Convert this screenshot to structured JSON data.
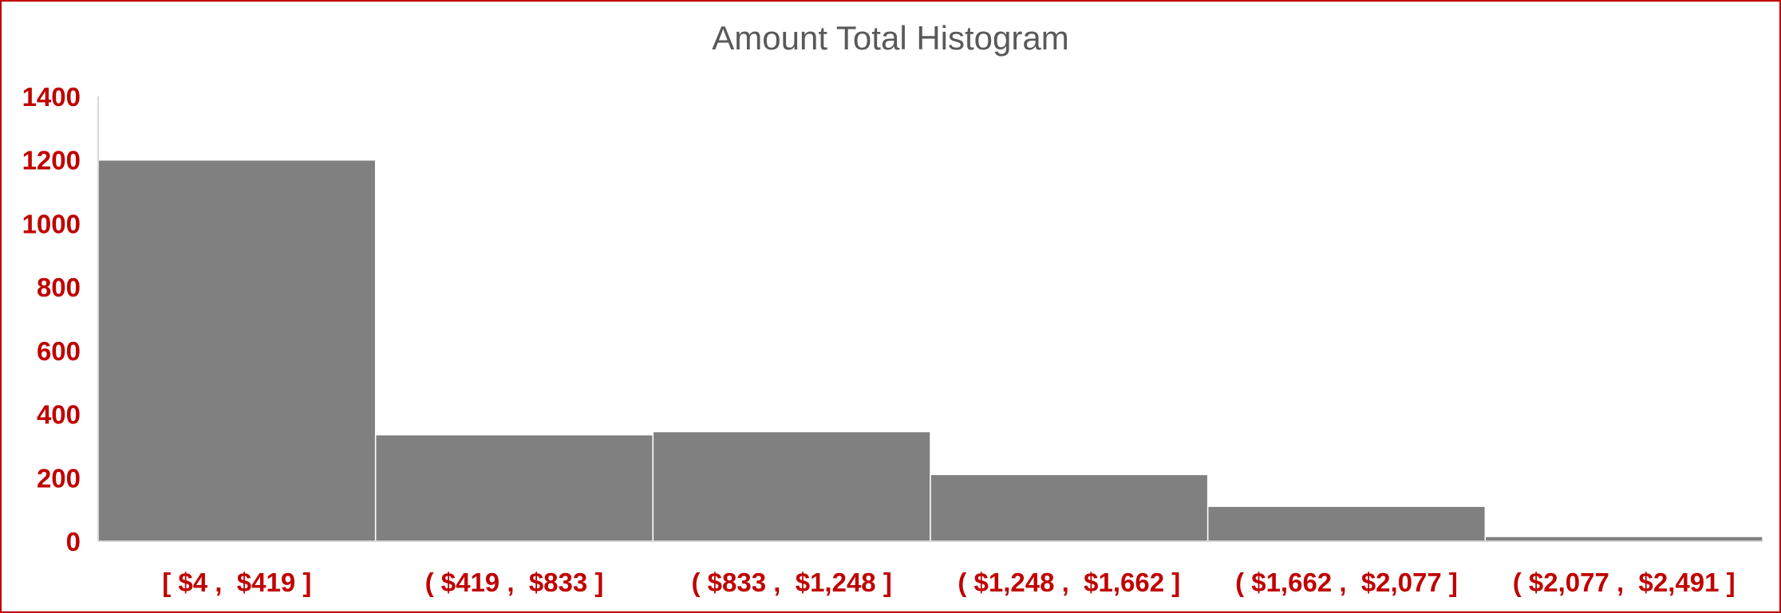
{
  "chart_data": {
    "type": "bar",
    "title": "Amount Total Histogram",
    "xlabel": "",
    "ylabel": "",
    "categories": [
      "[ $4 ,  $419 ]",
      "( $419 ,  $833 ]",
      "( $833 ,  $1,248 ]",
      "( $1,248 ,  $1,662 ]",
      "( $1,662 ,  $2,077 ]",
      "( $2,077 ,  $2,491 ]"
    ],
    "values": [
      1200,
      335,
      345,
      210,
      110,
      15
    ],
    "ylim": [
      0,
      1400
    ],
    "yticks": [
      "0",
      "200",
      "400",
      "600",
      "800",
      "1000",
      "1200",
      "1400"
    ],
    "grid": false,
    "legend": "none",
    "colors": {
      "bar": "#808080",
      "bar_edge": "#ffffff",
      "axis_text": "#c00000",
      "title": "#595959",
      "frame": "#c00000",
      "axis_line": "#d9d9d9"
    }
  }
}
